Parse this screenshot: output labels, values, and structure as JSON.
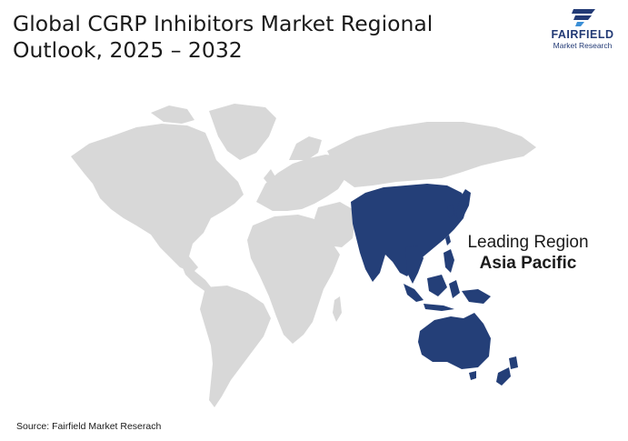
{
  "title": {
    "line1": "Global CGRP Inhibitors Market Regional",
    "line2": "Outlook, 2025 – 2032"
  },
  "brand": {
    "name": "FAIRFIELD",
    "subtitle": "Market Research",
    "color": "#223a75"
  },
  "highlight": {
    "label": "Leading Region",
    "value": "Asia Pacific",
    "color": "#243f78"
  },
  "map": {
    "land_color": "#d8d8d8",
    "highlighted_region": "Asia Pacific"
  },
  "source": "Source: Fairfield Market Reserach"
}
